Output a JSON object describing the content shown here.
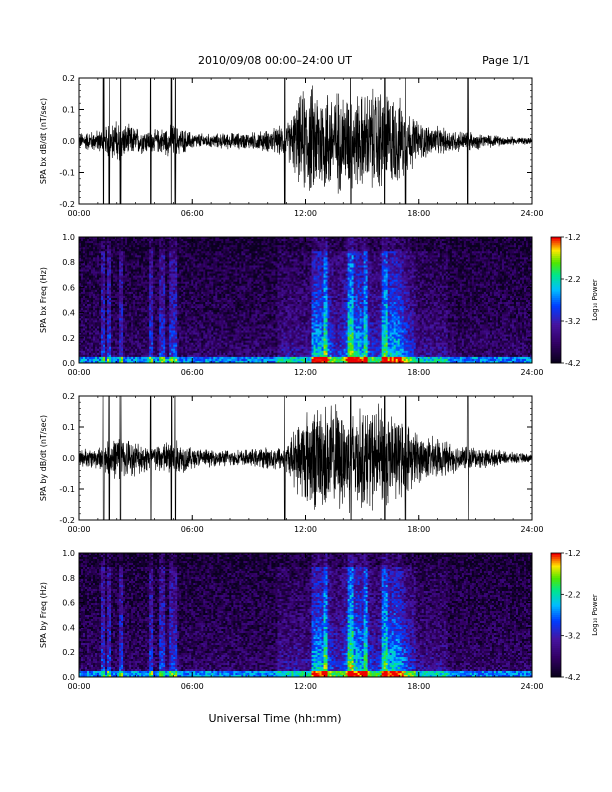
{
  "header": {
    "title": "2010/09/08  00:00–24:00 UT",
    "page": "Page 1/1"
  },
  "xlabel": "Universal Time (hh:mm)",
  "colorbar": {
    "label": "Log₁₀ Power",
    "ticks": [
      "-1.2",
      "-2.2",
      "-3.2",
      "-4.2"
    ],
    "range": [
      -4.2,
      -1.2
    ]
  },
  "chart_data": [
    {
      "type": "line",
      "ylabel": "SPA bx dB/dt (nT/sec)",
      "xlim": [
        0,
        24
      ],
      "ylim": [
        -0.2,
        0.2
      ],
      "x_tick_labels": [
        "00:00",
        "06:00",
        "12:00",
        "18:00",
        "24:00"
      ],
      "y_tick_labels": [
        "0.2",
        "0.1",
        "0.0",
        "-0.1",
        "-0.2"
      ],
      "envelope": {
        "hours": [
          0,
          1,
          2,
          3,
          4,
          5,
          6,
          7,
          8,
          9,
          10,
          11,
          12,
          13,
          14,
          15,
          16,
          17,
          18,
          19,
          20,
          21,
          22,
          23,
          24
        ],
        "amplitude": [
          0.03,
          0.04,
          0.07,
          0.05,
          0.04,
          0.06,
          0.03,
          0.025,
          0.03,
          0.03,
          0.04,
          0.06,
          0.2,
          0.2,
          0.18,
          0.17,
          0.2,
          0.15,
          0.07,
          0.05,
          0.04,
          0.03,
          0.02,
          0.015,
          0.012
        ]
      }
    },
    {
      "type": "heatmap",
      "ylabel": "SPA bx Freq (Hz)",
      "xlim": [
        0,
        24
      ],
      "ylim": [
        0.0,
        1.0
      ],
      "x_tick_labels": [
        "00:00",
        "06:00",
        "12:00",
        "18:00",
        "24:00"
      ],
      "y_tick_labels": [
        "1.0",
        "0.8",
        "0.6",
        "0.4",
        "0.2",
        "0.0"
      ],
      "colorbar_range": [
        -4.2,
        -1.2
      ]
    },
    {
      "type": "line",
      "ylabel": "SPA by dB/dt (nT/sec)",
      "xlim": [
        0,
        24
      ],
      "ylim": [
        -0.2,
        0.2
      ],
      "x_tick_labels": [
        "00:00",
        "06:00",
        "12:00",
        "18:00",
        "24:00"
      ],
      "y_tick_labels": [
        "0.2",
        "0.1",
        "0.0",
        "-0.1",
        "-0.2"
      ],
      "envelope": {
        "hours": [
          0,
          1,
          2,
          3,
          4,
          5,
          6,
          7,
          8,
          9,
          10,
          11,
          12,
          13,
          14,
          15,
          16,
          17,
          18,
          19,
          20,
          21,
          22,
          23,
          24
        ],
        "amplitude": [
          0.03,
          0.04,
          0.08,
          0.06,
          0.05,
          0.07,
          0.04,
          0.03,
          0.03,
          0.03,
          0.04,
          0.05,
          0.18,
          0.2,
          0.19,
          0.18,
          0.19,
          0.15,
          0.09,
          0.07,
          0.05,
          0.04,
          0.03,
          0.02,
          0.015
        ]
      }
    },
    {
      "type": "heatmap",
      "ylabel": "SPA by Freq (Hz)",
      "xlim": [
        0,
        24
      ],
      "ylim": [
        0.0,
        1.0
      ],
      "x_tick_labels": [
        "00:00",
        "06:00",
        "12:00",
        "18:00",
        "24:00"
      ],
      "y_tick_labels": [
        "1.0",
        "0.8",
        "0.6",
        "0.4",
        "0.2",
        "0.0"
      ],
      "colorbar_range": [
        -4.2,
        -1.2
      ]
    }
  ]
}
